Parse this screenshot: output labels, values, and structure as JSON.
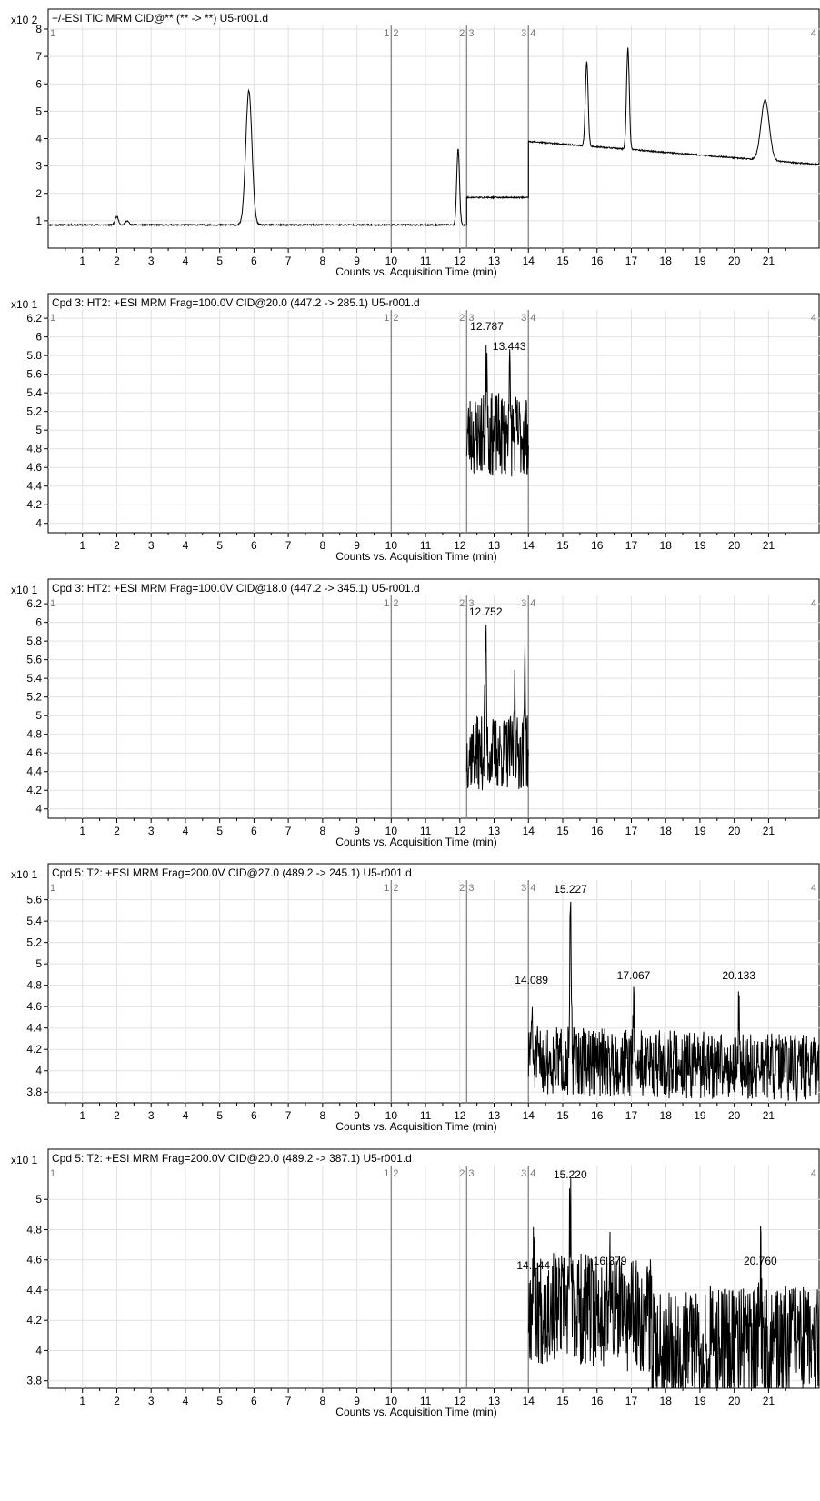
{
  "chart_data": [
    {
      "type": "line",
      "title": "+/-ESI TIC MRM CID@** (** -> **) U5-r001.d",
      "y_multiplier": "x10 2",
      "xlabel": "Counts vs. Acquisition Time (min)",
      "xlim": [
        0,
        22.5
      ],
      "ylim": [
        0,
        8
      ],
      "y_ticks": [
        "1",
        "2",
        "3",
        "4",
        "5",
        "6",
        "7",
        "8"
      ],
      "x_ticks": [
        "1",
        "2",
        "3",
        "4",
        "5",
        "6",
        "7",
        "8",
        "9",
        "10",
        "11",
        "12",
        "13",
        "14",
        "15",
        "16",
        "17",
        "18",
        "19",
        "20",
        "21"
      ],
      "segments": [
        {
          "x": 10.0,
          "labels": [
            "1",
            "2"
          ]
        },
        {
          "x": 12.2,
          "labels": [
            "2",
            "3"
          ]
        },
        {
          "x": 14.0,
          "labels": [
            "3",
            "4"
          ]
        }
      ],
      "segment_start_label": "1",
      "segment_end_label": "4",
      "grid": true,
      "annotations": [],
      "series": [
        {
          "seed": 11,
          "noise": 0.025,
          "parts": [
            {
              "x0": 0,
              "x1": 12.2,
              "base": 0.85,
              "slope": 0,
              "peaks": [
                [
                  2.0,
                  0.3,
                  0.05
                ],
                [
                  2.3,
                  0.15,
                  0.05
                ],
                [
                  5.85,
                  4.9,
                  0.09
                ],
                [
                  11.95,
                  2.8,
                  0.04
                ]
              ]
            },
            {
              "x0": 12.2,
              "x1": 14.0,
              "base": 1.85,
              "slope": 0,
              "peaks": []
            },
            {
              "x0": 14.0,
              "x1": 22.5,
              "base": 3.9,
              "slope": -0.1,
              "peaks": [
                [
                  15.7,
                  3.1,
                  0.04
                ],
                [
                  16.9,
                  3.7,
                  0.04
                ],
                [
                  20.9,
                  2.2,
                  0.12
                ]
              ]
            }
          ]
        }
      ]
    },
    {
      "type": "line",
      "title": "Cpd 3: HT2: +ESI MRM Frag=100.0V CID@20.0 (447.2 -> 285.1) U5-r001.d",
      "y_multiplier": "x10 1",
      "xlabel": "Counts vs. Acquisition Time (min)",
      "xlim": [
        0,
        22.5
      ],
      "ylim": [
        3.9,
        6.25
      ],
      "y_ticks": [
        "4",
        "4.2",
        "4.4",
        "4.6",
        "4.8",
        "5",
        "5.2",
        "5.4",
        "5.6",
        "5.8",
        "6",
        "6.2"
      ],
      "x_ticks": [
        "1",
        "2",
        "3",
        "4",
        "5",
        "6",
        "7",
        "8",
        "9",
        "10",
        "11",
        "12",
        "13",
        "14",
        "15",
        "16",
        "17",
        "18",
        "19",
        "20",
        "21"
      ],
      "segments": [
        {
          "x": 10.0,
          "labels": [
            "1",
            "2"
          ]
        },
        {
          "x": 12.2,
          "labels": [
            "2",
            "3"
          ]
        },
        {
          "x": 14.0,
          "labels": [
            "3",
            "4"
          ]
        }
      ],
      "segment_start_label": "1",
      "segment_end_label": "4",
      "grid": true,
      "annotations": [
        {
          "x": 12.787,
          "label": "12.787"
        },
        {
          "x": 13.443,
          "label": "13.443"
        }
      ],
      "series": [
        {
          "seed": 23,
          "noise": 0.45,
          "parts": [
            {
              "x0": 12.2,
              "x1": 14.0,
              "base": 4.95,
              "slope": 0,
              "peaks": [
                [
                  12.787,
                  0.95,
                  0.02
                ],
                [
                  13.443,
                  0.75,
                  0.02
                ]
              ]
            }
          ]
        }
      ]
    },
    {
      "type": "line",
      "title": "Cpd 3: HT2: +ESI MRM Frag=100.0V CID@18.0 (447.2 -> 345.1) U5-r001.d",
      "y_multiplier": "x10 1",
      "xlabel": "Counts vs. Acquisition Time (min)",
      "xlim": [
        0,
        22.5
      ],
      "ylim": [
        3.9,
        6.25
      ],
      "y_ticks": [
        "4",
        "4.2",
        "4.4",
        "4.6",
        "4.8",
        "5",
        "5.2",
        "5.4",
        "5.6",
        "5.8",
        "6",
        "6.2"
      ],
      "x_ticks": [
        "1",
        "2",
        "3",
        "4",
        "5",
        "6",
        "7",
        "8",
        "9",
        "10",
        "11",
        "12",
        "13",
        "14",
        "15",
        "16",
        "17",
        "18",
        "19",
        "20",
        "21"
      ],
      "segments": [
        {
          "x": 10.0,
          "labels": [
            "1",
            "2"
          ]
        },
        {
          "x": 12.2,
          "labels": [
            "2",
            "3"
          ]
        },
        {
          "x": 14.0,
          "labels": [
            "3",
            "4"
          ]
        }
      ],
      "segment_start_label": "1",
      "segment_end_label": "4",
      "grid": true,
      "annotations": [
        {
          "x": 12.752,
          "label": "12.752"
        }
      ],
      "series": [
        {
          "seed": 37,
          "noise": 0.4,
          "parts": [
            {
              "x0": 12.2,
              "x1": 14.0,
              "base": 4.6,
              "slope": 0,
              "peaks": [
                [
                  12.752,
                  1.3,
                  0.02
                ],
                [
                  13.6,
                  0.9,
                  0.015
                ],
                [
                  13.9,
                  1.2,
                  0.015
                ]
              ]
            }
          ]
        }
      ]
    },
    {
      "type": "line",
      "title": "Cpd 5: T2: +ESI MRM Frag=200.0V CID@27.0 (489.2 -> 245.1) U5-r001.d",
      "y_multiplier": "x10 1",
      "xlabel": "Counts vs. Acquisition Time (min)",
      "xlim": [
        0,
        22.5
      ],
      "ylim": [
        3.7,
        5.75
      ],
      "y_ticks": [
        "3.8",
        "4",
        "4.2",
        "4.4",
        "4.6",
        "4.8",
        "5",
        "5.2",
        "5.4",
        "5.6"
      ],
      "x_ticks": [
        "1",
        "2",
        "3",
        "4",
        "5",
        "6",
        "7",
        "8",
        "9",
        "10",
        "11",
        "12",
        "13",
        "14",
        "15",
        "16",
        "17",
        "18",
        "19",
        "20",
        "21"
      ],
      "segments": [
        {
          "x": 10.0,
          "labels": [
            "1",
            "2"
          ]
        },
        {
          "x": 12.2,
          "labels": [
            "2",
            "3"
          ]
        },
        {
          "x": 14.0,
          "labels": [
            "3",
            "4"
          ]
        }
      ],
      "segment_start_label": "1",
      "segment_end_label": "4",
      "grid": true,
      "annotations": [
        {
          "x": 14.089,
          "label": "14.089"
        },
        {
          "x": 15.227,
          "label": "15.227"
        },
        {
          "x": 17.067,
          "label": "17.067"
        },
        {
          "x": 20.133,
          "label": "20.133"
        }
      ],
      "series": [
        {
          "seed": 51,
          "noise": 0.32,
          "parts": [
            {
              "x0": 14.0,
              "x1": 22.5,
              "base": 4.1,
              "slope": -0.01,
              "peaks": [
                [
                  14.089,
                  0.4,
                  0.02
                ],
                [
                  15.227,
                  1.45,
                  0.02
                ],
                [
                  17.067,
                  0.5,
                  0.02
                ],
                [
                  20.133,
                  0.5,
                  0.02
                ]
              ]
            }
          ]
        }
      ]
    },
    {
      "type": "line",
      "title": "Cpd 5: T2: +ESI MRM Frag=200.0V CID@20.0 (489.2 -> 387.1) U5-r001.d",
      "y_multiplier": "x10 1",
      "xlabel": "Counts vs. Acquisition Time (min)",
      "xlim": [
        0,
        22.5
      ],
      "ylim": [
        3.75,
        5.2
      ],
      "y_ticks": [
        "3.8",
        "4",
        "4.2",
        "4.4",
        "4.6",
        "4.8",
        "5"
      ],
      "x_ticks": [
        "1",
        "2",
        "3",
        "4",
        "5",
        "6",
        "7",
        "8",
        "9",
        "10",
        "11",
        "12",
        "13",
        "14",
        "15",
        "16",
        "17",
        "18",
        "19",
        "20",
        "21"
      ],
      "segments": [
        {
          "x": 10.0,
          "labels": [
            "1",
            "2"
          ]
        },
        {
          "x": 12.2,
          "labels": [
            "2",
            "3"
          ]
        },
        {
          "x": 14.0,
          "labels": [
            "3",
            "4"
          ]
        }
      ],
      "segment_start_label": "1",
      "segment_end_label": "4",
      "grid": true,
      "annotations": [
        {
          "x": 14.144,
          "label": "14.144"
        },
        {
          "x": 15.22,
          "label": "15.220"
        },
        {
          "x": 16.379,
          "label": "16.379"
        },
        {
          "x": 20.76,
          "label": "20.760"
        }
      ],
      "series": [
        {
          "seed": 67,
          "noise": 0.38,
          "parts": [
            {
              "x0": 14.0,
              "x1": 17.6,
              "base": 4.3,
              "slope": -0.02,
              "peaks": [
                [
                  14.144,
                  0.4,
                  0.02
                ],
                [
                  15.22,
                  0.7,
                  0.02
                ],
                [
                  16.379,
                  0.3,
                  0.02
                ]
              ]
            },
            {
              "x0": 17.6,
              "x1": 22.5,
              "base": 4.05,
              "slope": 0,
              "peaks": [
                [
                  20.76,
                  0.55,
                  0.02
                ]
              ]
            }
          ]
        }
      ]
    }
  ]
}
